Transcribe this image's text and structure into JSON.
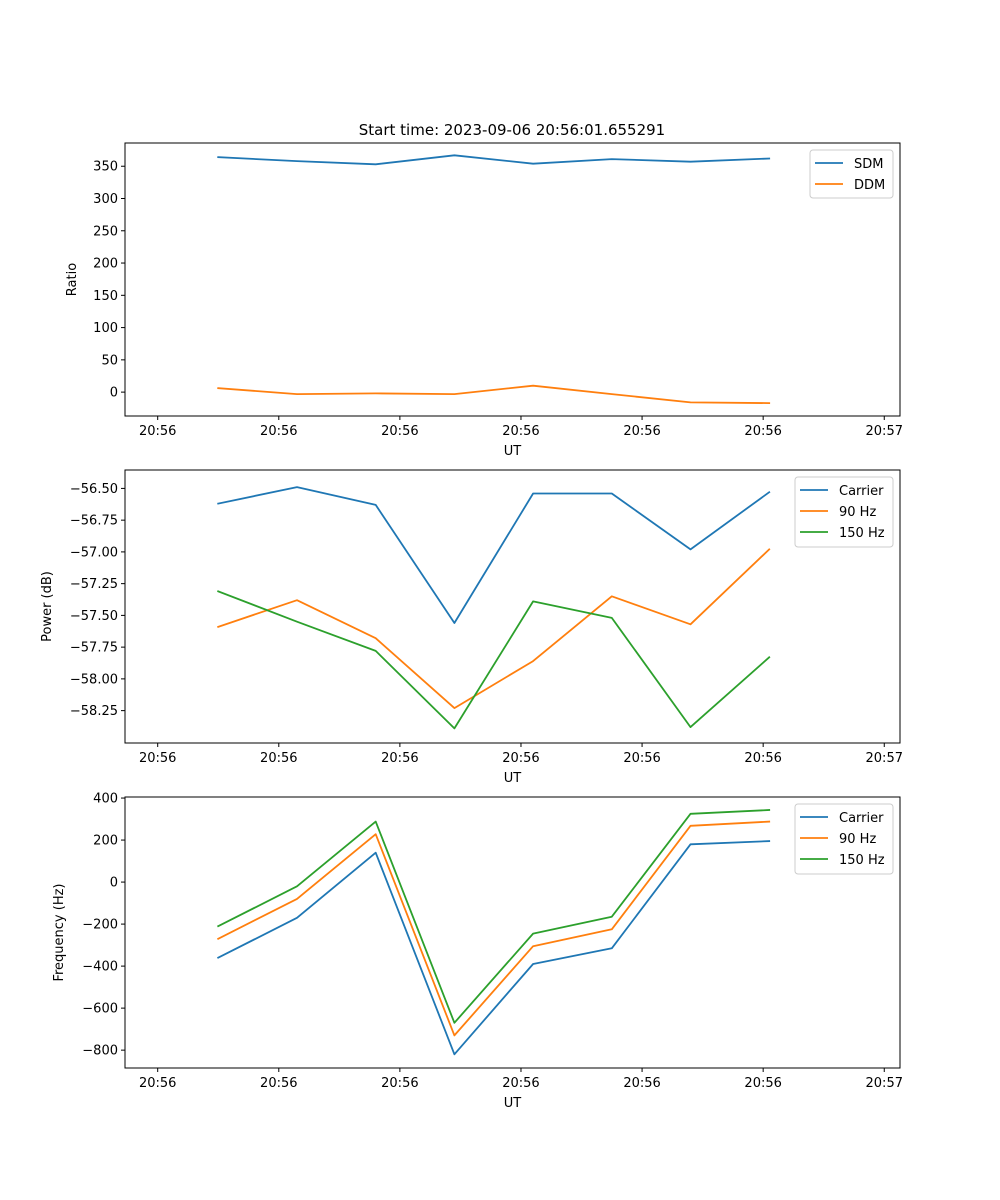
{
  "colors": {
    "c0": "#1f77b4",
    "c1": "#ff7f0e",
    "c2": "#2ca02c"
  },
  "chart_data": [
    {
      "type": "line",
      "title": "Start time: 2023-09-06 20:56:01.655291",
      "xlabel": "UT",
      "ylabel": "Ratio",
      "x_range": [
        -0.27,
        6.13
      ],
      "x_points": [
        0,
        0.65,
        1.3,
        1.95,
        2.6,
        3.25,
        3.9,
        4.55,
        5.2,
        5.85
      ],
      "x_tick_positions": [
        0,
        1,
        2,
        3,
        4,
        5,
        6
      ],
      "x_tick_labels": [
        "20:56",
        "20:56",
        "20:56",
        "20:56",
        "20:56",
        "20:56",
        "20:57"
      ],
      "ylim": [
        -37,
        386
      ],
      "y_ticks": [
        0,
        50,
        100,
        150,
        200,
        250,
        300,
        350
      ],
      "legend": [
        "SDM",
        "DDM"
      ],
      "legend_position": "top-right",
      "series": [
        {
          "name": "SDM",
          "x": [
            0.5,
            1.15,
            1.8,
            2.45,
            3.1,
            3.75,
            4.4,
            5.05
          ],
          "values": [
            364,
            358,
            353,
            367,
            354,
            361,
            357,
            362
          ]
        },
        {
          "name": "DDM",
          "x": [
            0.5,
            1.15,
            1.8,
            2.45,
            3.1,
            3.75,
            4.4,
            5.05
          ],
          "values": [
            6,
            -3,
            -2,
            -3,
            10,
            -3,
            -16,
            -17
          ]
        }
      ]
    },
    {
      "type": "line",
      "xlabel": "UT",
      "ylabel": "Power (dB)",
      "x_range": [
        -0.27,
        6.13
      ],
      "x_tick_positions": [
        0,
        1,
        2,
        3,
        4,
        5,
        6
      ],
      "x_tick_labels": [
        "20:56",
        "20:56",
        "20:56",
        "20:56",
        "20:56",
        "20:56",
        "20:57"
      ],
      "ylim": [
        -58.505,
        -56.355
      ],
      "y_ticks": [
        -58.25,
        -58.0,
        -57.75,
        -57.5,
        -57.25,
        -57.0,
        -56.75,
        -56.5
      ],
      "y_tick_labels": [
        "−58.25",
        "−58.00",
        "−57.75",
        "−57.50",
        "−57.25",
        "−57.00",
        "−56.75",
        "−56.50"
      ],
      "legend": [
        "Carrier",
        "90 Hz",
        "150 Hz"
      ],
      "legend_position": "top-right",
      "series": [
        {
          "name": "Carrier",
          "x": [
            0.5,
            1.15,
            1.8,
            2.45,
            3.1,
            3.75,
            4.4,
            5.05
          ],
          "values": [
            -56.62,
            -56.49,
            -56.63,
            -57.56,
            -56.54,
            -56.54,
            -56.98,
            -56.53
          ]
        },
        {
          "name": "90 Hz",
          "x": [
            0.5,
            1.15,
            1.8,
            2.45,
            3.1,
            3.75,
            4.4,
            5.05
          ],
          "values": [
            -57.59,
            -57.38,
            -57.68,
            -58.23,
            -57.86,
            -57.35,
            -57.57,
            -56.98
          ]
        },
        {
          "name": "150 Hz",
          "x": [
            0.5,
            1.15,
            1.8,
            2.45,
            3.1,
            3.75,
            4.4,
            5.05
          ],
          "values": [
            -57.31,
            -57.55,
            -57.78,
            -58.39,
            -57.39,
            -57.52,
            -58.38,
            -57.83
          ]
        }
      ]
    },
    {
      "type": "line",
      "xlabel": "UT",
      "ylabel": "Frequency (Hz)",
      "x_range": [
        -0.27,
        6.13
      ],
      "x_tick_positions": [
        0,
        1,
        2,
        3,
        4,
        5,
        6
      ],
      "x_tick_labels": [
        "20:56",
        "20:56",
        "20:56",
        "20:56",
        "20:56",
        "20:56",
        "20:57"
      ],
      "ylim": [
        -885,
        405
      ],
      "y_ticks": [
        -800,
        -600,
        -400,
        -200,
        0,
        200,
        400
      ],
      "y_tick_labels": [
        "−800",
        "−600",
        "−400",
        "−200",
        "0",
        "200",
        "400"
      ],
      "legend": [
        "Carrier",
        "90 Hz",
        "150 Hz"
      ],
      "legend_position": "top-right",
      "series": [
        {
          "name": "Carrier",
          "x": [
            0.5,
            1.15,
            1.8,
            2.45,
            3.1,
            3.75,
            4.4,
            5.05
          ],
          "values": [
            -360,
            -170,
            140,
            -820,
            -390,
            -315,
            180,
            195
          ]
        },
        {
          "name": "90 Hz",
          "x": [
            0.5,
            1.15,
            1.8,
            2.45,
            3.1,
            3.75,
            4.4,
            5.05
          ],
          "values": [
            -270,
            -80,
            228,
            -730,
            -305,
            -225,
            268,
            288
          ]
        },
        {
          "name": "150 Hz",
          "x": [
            0.5,
            1.15,
            1.8,
            2.45,
            3.1,
            3.75,
            4.4,
            5.05
          ],
          "values": [
            -210,
            -20,
            288,
            -670,
            -245,
            -165,
            325,
            343
          ]
        }
      ]
    }
  ]
}
